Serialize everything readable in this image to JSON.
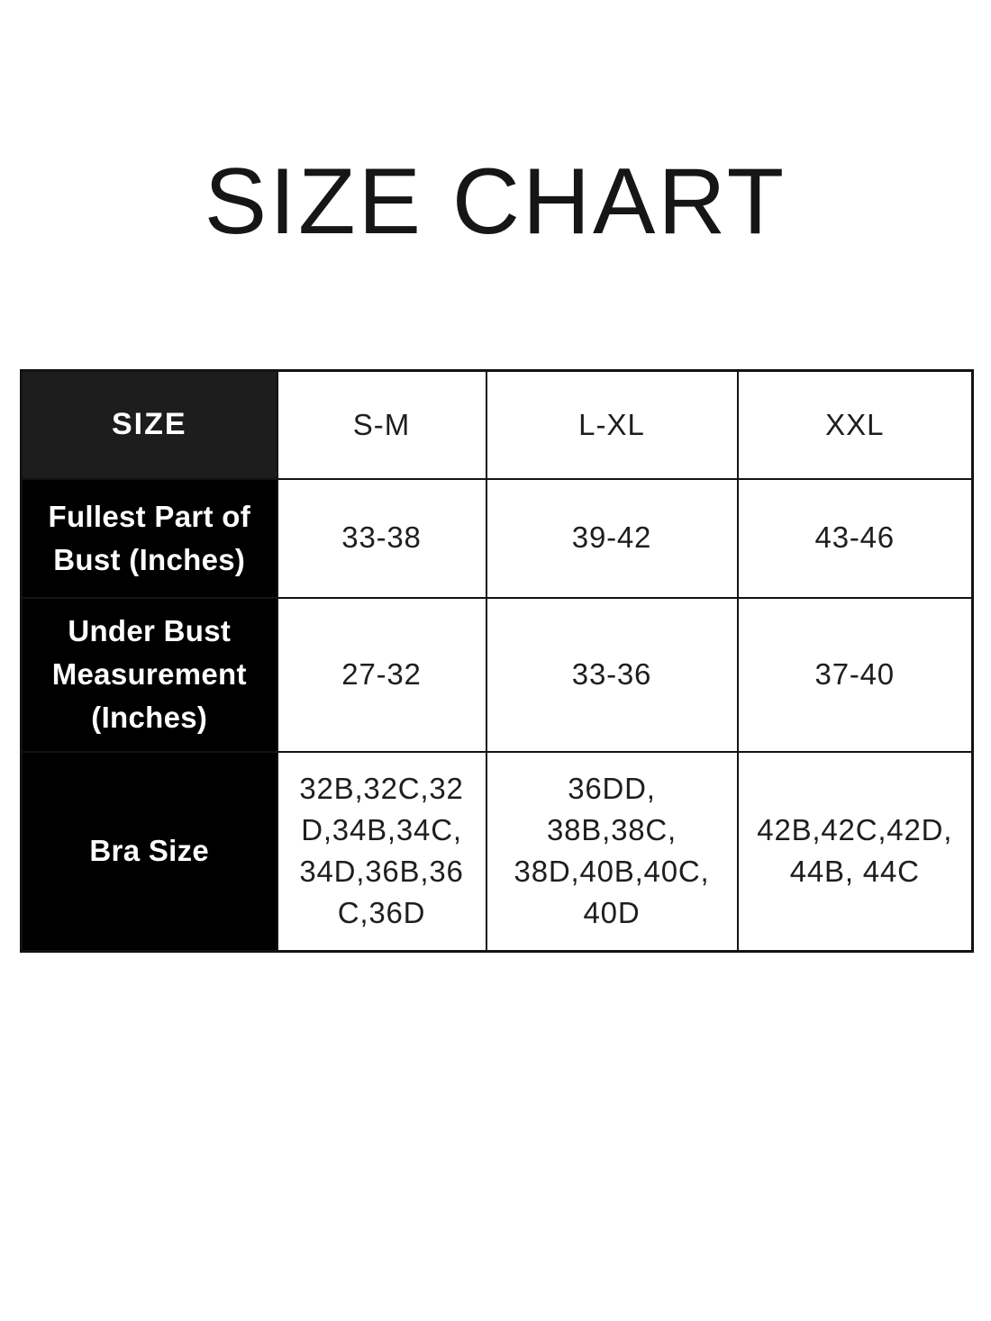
{
  "page": {
    "title": "SIZE CHART"
  },
  "table": {
    "header": {
      "size_label": "SIZE",
      "columns": [
        "S-M",
        "L-XL",
        "XXL"
      ]
    },
    "rows": [
      {
        "label": "Fullest Part of Bust (Inches)",
        "values": [
          "33-38",
          "39-42",
          "43-46"
        ]
      },
      {
        "label": "Under Bust Measurement (Inches)",
        "values": [
          "27-32",
          "33-36",
          "37-40"
        ]
      },
      {
        "label": "Bra Size",
        "values": [
          "32B,32C,32\nD,34B,34C,\n34D,36B,36\nC,36D",
          "36DD,\n38B,38C,\n38D,40B,40C,\n40D",
          "42B,42C,42D,\n44B, 44C"
        ]
      }
    ]
  },
  "colors": {
    "header_cell_bg": "#1d1d1d",
    "label_cell_bg": "#000000",
    "label_text": "#ffffff",
    "body_text": "#1e1e1e",
    "border": "#131313",
    "page_bg": "#ffffff"
  },
  "chart_data": {
    "type": "table",
    "title": "SIZE CHART",
    "columns": [
      "SIZE",
      "S-M",
      "L-XL",
      "XXL"
    ],
    "rows": [
      [
        "Fullest Part of Bust (Inches)",
        "33-38",
        "39-42",
        "43-46"
      ],
      [
        "Under Bust Measurement (Inches)",
        "27-32",
        "33-36",
        "37-40"
      ],
      [
        "Bra Size",
        "32B,32C,32D,34B,34C,34D,36B,36C,36D",
        "36DD, 38B,38C, 38D,40B,40C, 40D",
        "42B,42C,42D, 44B, 44C"
      ]
    ]
  }
}
